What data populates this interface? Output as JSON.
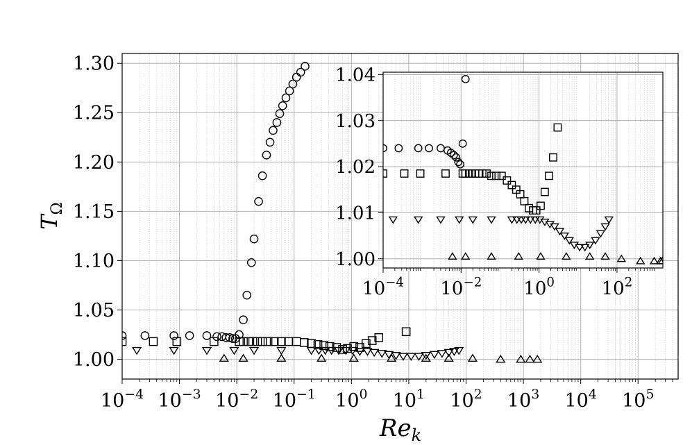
{
  "chart_data": [
    {
      "type": "scatter",
      "xscale": "log",
      "xlim": [
        0.0001,
        500000
      ],
      "ylim": [
        0.98,
        1.31
      ],
      "xlabel": "Re_k",
      "ylabel": "T_Ω",
      "x_ticks": [
        "10^-4",
        "10^-3",
        "10^-2",
        "10^-1",
        "10^0",
        "10^1",
        "10^2",
        "10^3",
        "10^4",
        "10^5"
      ],
      "y_ticks": [
        "1.00",
        "1.05",
        "1.10",
        "1.15",
        "1.20",
        "1.25",
        "1.30"
      ],
      "grid": true,
      "series": [
        {
          "marker": "circle",
          "points": [
            [
              0.0001,
              1.024
            ],
            [
              0.00025,
              1.024
            ],
            [
              0.0008,
              1.024
            ],
            [
              0.0015,
              1.024
            ],
            [
              0.003,
              1.024
            ],
            [
              0.0045,
              1.023
            ],
            [
              0.0055,
              1.023
            ],
            [
              0.0065,
              1.022
            ],
            [
              0.0075,
              1.022
            ],
            [
              0.0085,
              1.021
            ],
            [
              0.0095,
              1.021
            ],
            [
              0.011,
              1.025
            ],
            [
              0.013,
              1.04
            ],
            [
              0.015,
              1.065
            ],
            [
              0.018,
              1.098
            ],
            [
              0.02,
              1.122
            ],
            [
              0.024,
              1.16
            ],
            [
              0.028,
              1.186
            ],
            [
              0.033,
              1.207
            ],
            [
              0.038,
              1.22
            ],
            [
              0.043,
              1.232
            ],
            [
              0.05,
              1.24
            ],
            [
              0.056,
              1.249
            ],
            [
              0.063,
              1.257
            ],
            [
              0.072,
              1.265
            ],
            [
              0.083,
              1.272
            ],
            [
              0.095,
              1.279
            ],
            [
              0.11,
              1.286
            ],
            [
              0.13,
              1.291
            ],
            [
              0.155,
              1.297
            ]
          ]
        },
        {
          "marker": "square",
          "points": [
            [
              0.0001,
              1.018
            ],
            [
              0.00035,
              1.018
            ],
            [
              0.0009,
              1.018
            ],
            [
              0.004,
              1.018
            ],
            [
              0.011,
              1.018
            ],
            [
              0.013,
              1.018
            ],
            [
              0.016,
              1.018
            ],
            [
              0.019,
              1.018
            ],
            [
              0.023,
              1.018
            ],
            [
              0.028,
              1.018
            ],
            [
              0.035,
              1.018
            ],
            [
              0.045,
              1.018
            ],
            [
              0.06,
              1.018
            ],
            [
              0.08,
              1.018
            ],
            [
              0.11,
              1.018
            ],
            [
              0.15,
              1.017
            ],
            [
              0.2,
              1.016
            ],
            [
              0.26,
              1.015
            ],
            [
              0.33,
              1.014
            ],
            [
              0.42,
              1.013
            ],
            [
              0.55,
              1.012
            ],
            [
              0.7,
              1.01
            ],
            [
              0.85,
              1.011
            ],
            [
              1.1,
              1.013
            ],
            [
              1.4,
              1.012
            ],
            [
              1.8,
              1.016
            ],
            [
              2.3,
              1.019
            ],
            [
              3.0,
              1.022
            ],
            [
              9.0,
              1.028
            ]
          ]
        },
        {
          "marker": "triangle-down",
          "points": [
            [
              0.00018,
              1.009
            ],
            [
              0.0008,
              1.009
            ],
            [
              0.003,
              1.009
            ],
            [
              0.009,
              1.009
            ],
            [
              0.02,
              1.009
            ],
            [
              0.06,
              1.009
            ],
            [
              0.2,
              1.009
            ],
            [
              0.27,
              1.009
            ],
            [
              0.35,
              1.009
            ],
            [
              0.45,
              1.009
            ],
            [
              0.6,
              1.009
            ],
            [
              0.8,
              1.009
            ],
            [
              1.05,
              1.009
            ],
            [
              1.4,
              1.008
            ],
            [
              1.9,
              1.008
            ],
            [
              2.5,
              1.007
            ],
            [
              3.4,
              1.006
            ],
            [
              4.5,
              1.005
            ],
            [
              6,
              1.004
            ],
            [
              8,
              1.003
            ],
            [
              11,
              1.003
            ],
            [
              15,
              1.003
            ],
            [
              20,
              1.004
            ],
            [
              28,
              1.005
            ],
            [
              38,
              1.006
            ],
            [
              50,
              1.007
            ],
            [
              62,
              1.008
            ],
            [
              75,
              1.009
            ]
          ]
        },
        {
          "marker": "triangle-up",
          "points": [
            [
              0.006,
              1.001
            ],
            [
              0.013,
              1.001
            ],
            [
              0.06,
              1.001
            ],
            [
              0.3,
              1.001
            ],
            [
              1.1,
              1.001
            ],
            [
              5,
              1.001
            ],
            [
              20,
              1.001
            ],
            [
              50,
              1.001
            ],
            [
              130,
              1.001
            ],
            [
              400,
              1.0
            ],
            [
              900,
              1.0
            ],
            [
              1300,
              1.0
            ],
            [
              1750,
              1.0
            ]
          ]
        }
      ]
    },
    {
      "type": "scatter",
      "role": "inset",
      "xscale": "log",
      "xlim": [
        0.0001,
        1500
      ],
      "ylim": [
        0.998,
        1.0405
      ],
      "x_ticks": [
        "10^-4",
        "10^-2",
        "10^0",
        "10^2"
      ],
      "y_ticks": [
        "1.00",
        "1.01",
        "1.02",
        "1.03",
        "1.04"
      ],
      "grid": true,
      "series": [
        {
          "marker": "circle",
          "points": [
            [
              0.0001,
              1.024
            ],
            [
              0.00025,
              1.024
            ],
            [
              0.0008,
              1.024
            ],
            [
              0.0015,
              1.024
            ],
            [
              0.003,
              1.024
            ],
            [
              0.0045,
              1.0235
            ],
            [
              0.0055,
              1.023
            ],
            [
              0.0065,
              1.0225
            ],
            [
              0.0075,
              1.022
            ],
            [
              0.0085,
              1.021
            ],
            [
              0.0095,
              1.0205
            ],
            [
              0.011,
              1.025
            ],
            [
              0.013,
              1.039
            ]
          ]
        },
        {
          "marker": "square",
          "points": [
            [
              0.0001,
              1.0185
            ],
            [
              0.00035,
              1.0185
            ],
            [
              0.0009,
              1.0185
            ],
            [
              0.004,
              1.0185
            ],
            [
              0.011,
              1.0185
            ],
            [
              0.013,
              1.0185
            ],
            [
              0.016,
              1.0185
            ],
            [
              0.019,
              1.0185
            ],
            [
              0.023,
              1.0185
            ],
            [
              0.028,
              1.0185
            ],
            [
              0.035,
              1.0185
            ],
            [
              0.045,
              1.0185
            ],
            [
              0.06,
              1.018
            ],
            [
              0.08,
              1.018
            ],
            [
              0.11,
              1.018
            ],
            [
              0.15,
              1.017
            ],
            [
              0.2,
              1.016
            ],
            [
              0.26,
              1.015
            ],
            [
              0.33,
              1.014
            ],
            [
              0.42,
              1.0125
            ],
            [
              0.55,
              1.011
            ],
            [
              0.7,
              1.0105
            ],
            [
              0.85,
              1.0105
            ],
            [
              1.1,
              1.0115
            ],
            [
              1.4,
              1.0145
            ],
            [
              1.8,
              1.018
            ],
            [
              2.3,
              1.022
            ],
            [
              3.0,
              1.0285
            ]
          ]
        },
        {
          "marker": "triangle-down",
          "points": [
            [
              0.00018,
              1.0085
            ],
            [
              0.0008,
              1.0085
            ],
            [
              0.003,
              1.0085
            ],
            [
              0.009,
              1.0085
            ],
            [
              0.02,
              1.0085
            ],
            [
              0.06,
              1.0085
            ],
            [
              0.2,
              1.0085
            ],
            [
              0.27,
              1.0085
            ],
            [
              0.35,
              1.0085
            ],
            [
              0.45,
              1.0085
            ],
            [
              0.6,
              1.0085
            ],
            [
              0.8,
              1.0085
            ],
            [
              1.05,
              1.0085
            ],
            [
              1.4,
              1.008
            ],
            [
              1.9,
              1.0075
            ],
            [
              2.5,
              1.007
            ],
            [
              3.4,
              1.006
            ],
            [
              4.5,
              1.005
            ],
            [
              6,
              1.004
            ],
            [
              8,
              1.003
            ],
            [
              11,
              1.0025
            ],
            [
              15,
              1.0025
            ],
            [
              20,
              1.003
            ],
            [
              28,
              1.004
            ],
            [
              38,
              1.0055
            ],
            [
              50,
              1.007
            ],
            [
              62,
              1.0085
            ]
          ]
        },
        {
          "marker": "triangle-up",
          "points": [
            [
              0.006,
              1.0005
            ],
            [
              0.013,
              1.0005
            ],
            [
              0.06,
              1.0005
            ],
            [
              0.3,
              1.0005
            ],
            [
              1.1,
              1.0005
            ],
            [
              5,
              1.0005
            ],
            [
              20,
              1.0005
            ],
            [
              50,
              1.0005
            ],
            [
              130,
              1.0
            ],
            [
              400,
              0.9995
            ],
            [
              900,
              0.9995
            ],
            [
              1300,
              0.9995
            ],
            [
              1450,
              0.9995
            ]
          ]
        }
      ]
    }
  ]
}
